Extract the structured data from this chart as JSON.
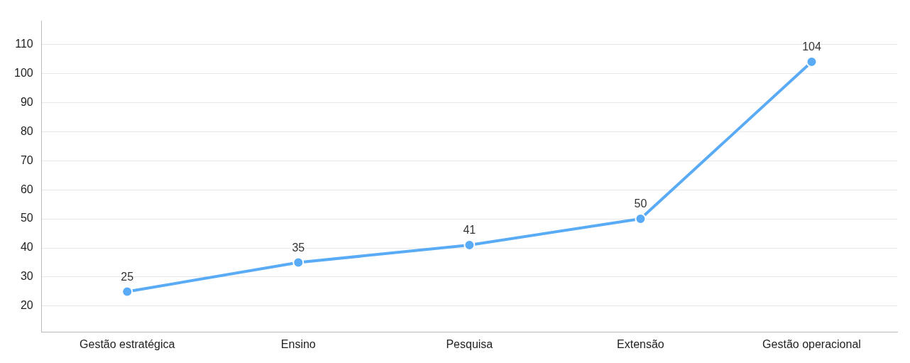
{
  "chart_data": {
    "type": "line",
    "categories": [
      "Gestão estratégica",
      "Ensino",
      "Pesquisa",
      "Extensão",
      "Gestão operacional"
    ],
    "series": [
      {
        "color": "#5aabf5",
        "values": [
          25,
          35,
          41,
          50,
          104
        ]
      }
    ],
    "ylim": [
      11,
      118
    ],
    "yticks": [
      20,
      30,
      40,
      50,
      60,
      70,
      80,
      90,
      100,
      110
    ],
    "grid": "y",
    "legend": false,
    "marker": "circle",
    "line_style": "solid",
    "data_labels": true
  }
}
